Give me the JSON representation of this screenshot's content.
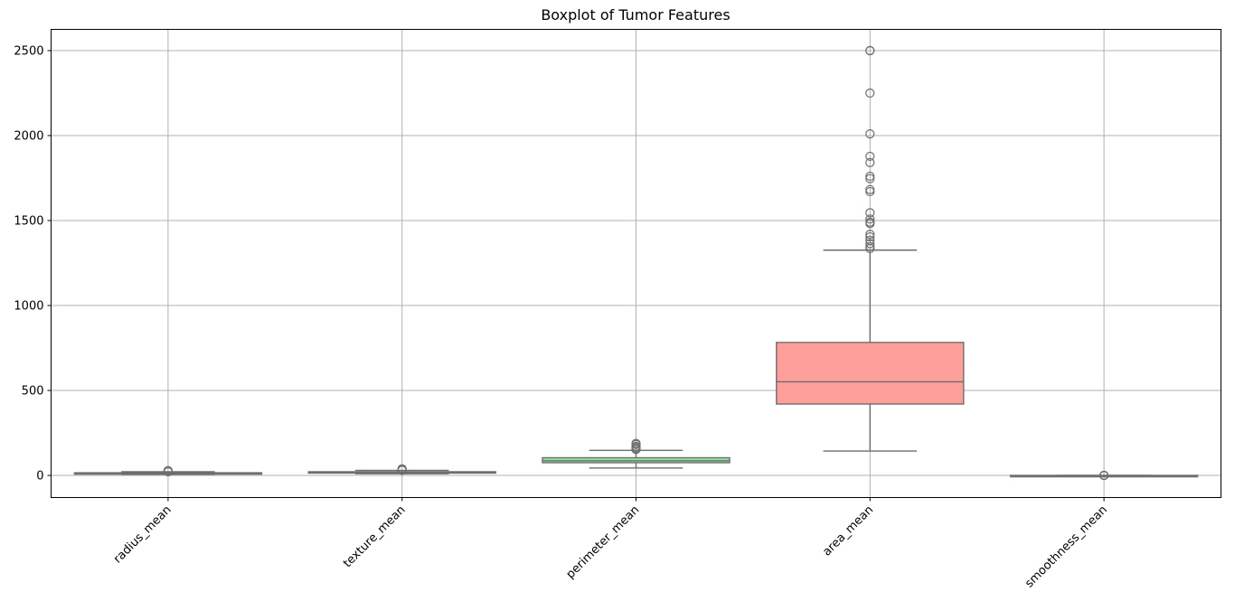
{
  "chart_data": {
    "type": "box",
    "title": "Boxplot of Tumor Features",
    "xlabel": "",
    "ylabel": "",
    "ylim": [
      -130,
      2625
    ],
    "yticks": [
      0,
      500,
      1000,
      1500,
      2000,
      2500
    ],
    "grid": true,
    "edge_color": "#6e6e6e",
    "categories": [
      "radius_mean",
      "texture_mean",
      "perimeter_mean",
      "area_mean",
      "smoothness_mean"
    ],
    "boxes": [
      {
        "label": "radius_mean",
        "color": "#a1c9f4",
        "whisker_low": 6.98,
        "q1": 11.7,
        "median": 13.37,
        "q3": 15.78,
        "whisker_high": 21.9,
        "outliers": [
          22.0,
          22.3,
          23.3,
          24.3,
          25.2,
          27.2,
          28.1
        ]
      },
      {
        "label": "texture_mean",
        "color": "#ffb482",
        "whisker_low": 9.71,
        "q1": 16.17,
        "median": 18.84,
        "q3": 21.8,
        "whisker_high": 29.97,
        "outliers": [
          30.6,
          31.1,
          32.5,
          33.8,
          39.3
        ]
      },
      {
        "label": "perimeter_mean",
        "color": "#8de5a1",
        "whisker_low": 43.8,
        "q1": 75.2,
        "median": 86.2,
        "q3": 104.1,
        "whisker_high": 147.3,
        "outliers": [
          152.8,
          155.1,
          158.9,
          165.5,
          171.5,
          182.1,
          188.5
        ]
      },
      {
        "label": "area_mean",
        "color": "#ff9f9b",
        "whisker_low": 143.5,
        "q1": 420.3,
        "median": 551.1,
        "q3": 782.7,
        "whisker_high": 1326,
        "outliers": [
          1335,
          1347,
          1364,
          1384,
          1404,
          1419,
          1482,
          1491,
          1509,
          1546,
          1670,
          1682,
          1747,
          1761,
          1841,
          1878,
          2010,
          2250,
          2499,
          2501
        ]
      },
      {
        "label": "smoothness_mean",
        "color": "#d0bbff",
        "whisker_low": 0.0526,
        "q1": 0.0864,
        "median": 0.0959,
        "q3": 0.1053,
        "whisker_high": 0.1335,
        "outliers": [
          0.0263,
          0.1371,
          0.1398,
          0.1425,
          0.1447,
          0.1634
        ]
      }
    ]
  }
}
